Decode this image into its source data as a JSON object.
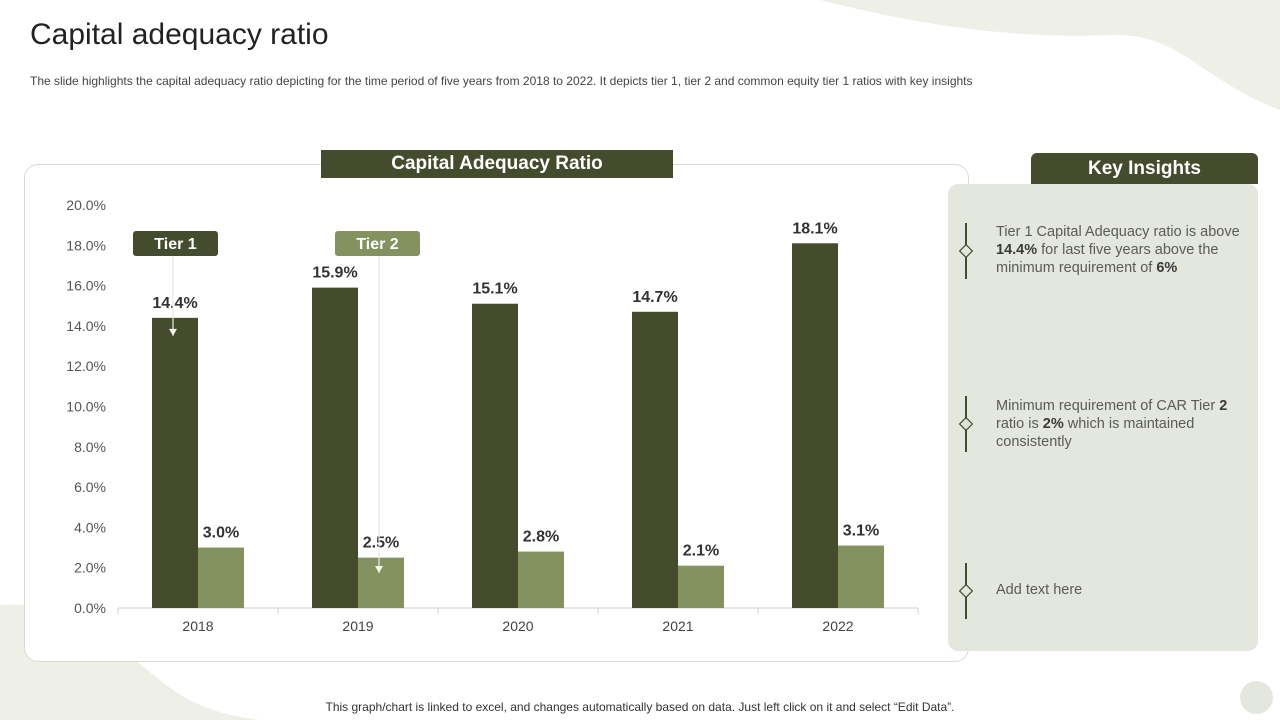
{
  "page": {
    "title": "Capital adequacy ratio",
    "subtitle": "The slide highlights the capital adequacy ratio depicting for the time period of five years from 2018 to 2022. It depicts tier 1, tier 2 and common equity tier 1 ratios with key insights",
    "footer": "This graph/chart is linked to excel, and changes automatically based on data. Just left click on it and select “Edit Data”."
  },
  "colors": {
    "dark_olive": "#454b2d",
    "light_olive": "#84925f",
    "panel": "#e4e7dd"
  },
  "chart_data": {
    "type": "bar",
    "title": "Capital Adequacy Ratio",
    "categories": [
      "2018",
      "2019",
      "2020",
      "2021",
      "2022"
    ],
    "series": [
      {
        "name": "Tier 1",
        "values": [
          14.4,
          15.9,
          15.1,
          14.7,
          18.1
        ],
        "labels": [
          "14.4%",
          "15.9%",
          "15.1%",
          "14.7%",
          "18.1%"
        ],
        "color": "#454b2d"
      },
      {
        "name": "Tier 2",
        "values": [
          3.0,
          2.5,
          2.8,
          2.1,
          3.1
        ],
        "labels": [
          "3.0%",
          "2.5%",
          "2.8%",
          "2.1%",
          "3.1%"
        ],
        "color": "#84925f"
      }
    ],
    "ylim": [
      0,
      20
    ],
    "yticks": [
      "0.0%",
      "2.0%",
      "4.0%",
      "6.0%",
      "8.0%",
      "10.0%",
      "12.0%",
      "14.0%",
      "16.0%",
      "18.0%",
      "20.0%"
    ],
    "xlabel": "",
    "ylabel": "",
    "grid": false,
    "callouts": [
      {
        "label": "Tier 1",
        "series": 0,
        "category": 0
      },
      {
        "label": "Tier 2",
        "series": 1,
        "category": 1
      }
    ]
  },
  "insights": {
    "header": "Key Insights",
    "items": [
      {
        "parts": [
          {
            "text": "Tier 1 Capital Adequacy ratio is above ",
            "bold": false
          },
          {
            "text": "14.4%",
            "bold": true
          },
          {
            "text": " for last five years above the minimum requirement of ",
            "bold": false
          },
          {
            "text": "6%",
            "bold": true
          }
        ]
      },
      {
        "parts": [
          {
            "text": "Minimum requirement of CAR Tier ",
            "bold": false
          },
          {
            "text": "2",
            "bold": true
          },
          {
            "text": " ratio is ",
            "bold": false
          },
          {
            "text": "2%",
            "bold": true
          },
          {
            "text": " which is maintained consistently",
            "bold": false
          }
        ]
      },
      {
        "parts": [
          {
            "text": "Add text here",
            "bold": false
          }
        ]
      }
    ]
  }
}
